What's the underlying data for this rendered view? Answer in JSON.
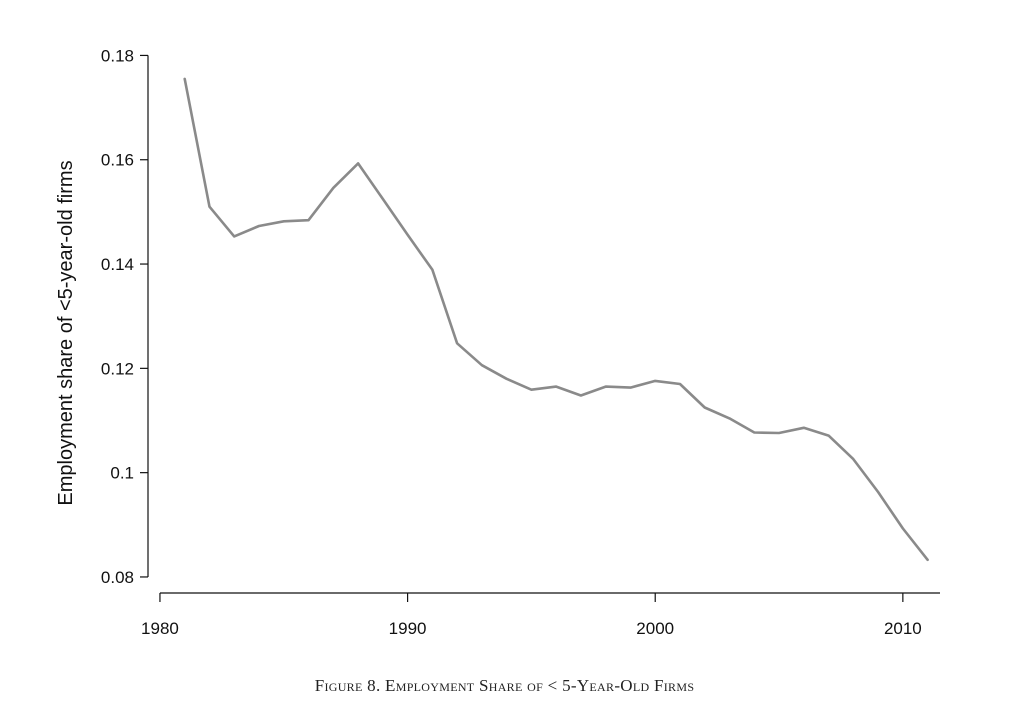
{
  "chart_data": {
    "type": "line",
    "title": "",
    "caption": "Figure 8. Employment Share of < 5-Year-Old Firms",
    "xlabel": "",
    "ylabel": "Employment share of <5-year-old firms",
    "xlim": [
      1979.8,
      2011.5
    ],
    "ylim": [
      0.0775,
      0.182
    ],
    "x_ticks": [
      1980,
      1990,
      2000,
      2010
    ],
    "x_tick_labels": [
      "1980",
      "1990",
      "2000",
      "2010"
    ],
    "y_ticks": [
      0.08,
      0.1,
      0.12,
      0.14,
      0.16,
      0.18
    ],
    "y_tick_labels": [
      "0.08",
      "0.1",
      "0.12",
      "0.14",
      "0.16",
      "0.18"
    ],
    "grid": false,
    "line_color": "#8a8a8a",
    "series": [
      {
        "x": [
          1981,
          1982,
          1983,
          1984,
          1985,
          1986,
          1987,
          1988,
          1989,
          1990,
          1991,
          1992,
          1993,
          1994,
          1995,
          1996,
          1997,
          1998,
          1999,
          2000,
          2001,
          2002,
          2003,
          2004,
          2005,
          2006,
          2007,
          2008,
          2009,
          2010,
          2011
        ],
        "values": [
          0.1755,
          0.151,
          0.1453,
          0.1473,
          0.1482,
          0.1484,
          0.1546,
          0.1593,
          0.1525,
          0.1456,
          0.1389,
          0.1248,
          0.1206,
          0.118,
          0.1159,
          0.1165,
          0.1148,
          0.1165,
          0.1163,
          0.1176,
          0.117,
          0.1125,
          0.1104,
          0.1077,
          0.1076,
          0.1086,
          0.1071,
          0.1026,
          0.0963,
          0.0893,
          0.0833
        ]
      }
    ]
  }
}
